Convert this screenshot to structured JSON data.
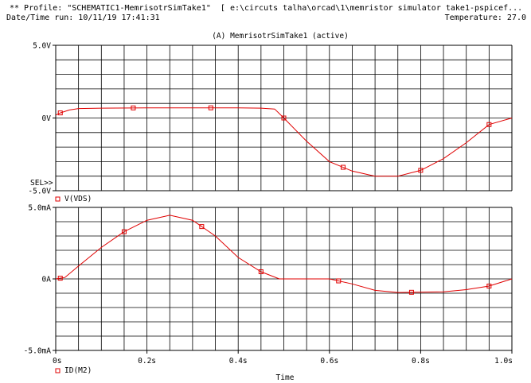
{
  "header": {
    "profile": "** Profile: \"SCHEMATIC1-MemrisotrSimTake1\"  [ e:\\circuts talha\\orcad\\1\\memristor simulator take1-pspicef...",
    "datetime": "Date/Time run: 10/11/19 17:41:31",
    "temperature": "Temperature: 27.0"
  },
  "plot_title": "(A) MemrisotrSimTake1 (active)",
  "sel_marker": "SEL>>",
  "colors": {
    "trace": "#e00000",
    "grid": "#000000",
    "background": "#ffffff"
  },
  "chart_data": [
    {
      "type": "line",
      "xlabel": "",
      "ylabel": "",
      "xlim": [
        0,
        1.0
      ],
      "ylim": [
        -5.0,
        5.0
      ],
      "y_ticks": [
        "5.0V",
        "0V",
        "-5.0V"
      ],
      "legend": [
        {
          "marker": "square",
          "label": "V(VDS)"
        }
      ],
      "series": [
        {
          "name": "V(VDS)",
          "x": [
            0.0,
            0.01,
            0.03,
            0.05,
            0.1,
            0.2,
            0.3,
            0.4,
            0.45,
            0.48,
            0.5,
            0.55,
            0.6,
            0.65,
            0.7,
            0.75,
            0.8,
            0.85,
            0.9,
            0.95,
            1.0
          ],
          "y": [
            0.2,
            0.35,
            0.55,
            0.65,
            0.68,
            0.7,
            0.7,
            0.7,
            0.68,
            0.62,
            0.0,
            -1.6,
            -3.0,
            -3.65,
            -4.0,
            -4.0,
            -3.6,
            -2.8,
            -1.7,
            -0.45,
            0.0
          ]
        }
      ],
      "markers_x": [
        0.01,
        0.17,
        0.34,
        0.5,
        0.63,
        0.8,
        0.95
      ]
    },
    {
      "type": "line",
      "xlabel": "Time",
      "ylabel": "",
      "xlim": [
        0,
        1.0
      ],
      "ylim": [
        -5.0,
        5.0
      ],
      "x_ticks": [
        "0s",
        "0.2s",
        "0.4s",
        "0.6s",
        "0.8s",
        "1.0s"
      ],
      "y_ticks": [
        "5.0mA",
        "0A",
        "-5.0mA"
      ],
      "legend": [
        {
          "marker": "square",
          "label": "ID(M2)"
        }
      ],
      "series": [
        {
          "name": "ID(M2)",
          "x": [
            0.0,
            0.02,
            0.05,
            0.1,
            0.15,
            0.2,
            0.25,
            0.3,
            0.35,
            0.4,
            0.45,
            0.49,
            0.5,
            0.6,
            0.65,
            0.7,
            0.75,
            0.85,
            0.9,
            0.95,
            1.0
          ],
          "y": [
            0.0,
            0.1,
            0.9,
            2.2,
            3.3,
            4.1,
            4.45,
            4.1,
            3.0,
            1.5,
            0.5,
            0.0,
            0.0,
            0.0,
            -0.35,
            -0.8,
            -0.95,
            -0.9,
            -0.75,
            -0.5,
            0.0
          ]
        }
      ],
      "markers_x": [
        0.01,
        0.15,
        0.32,
        0.45,
        0.62,
        0.78,
        0.95
      ]
    }
  ]
}
